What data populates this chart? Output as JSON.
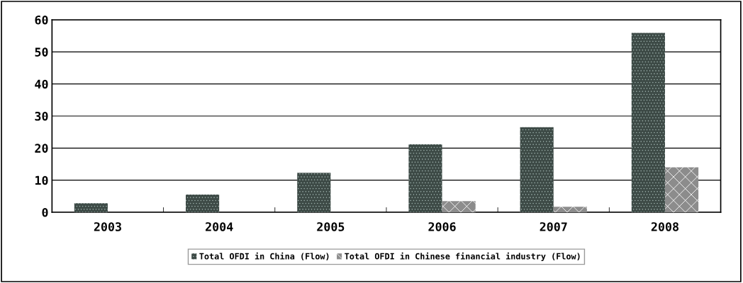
{
  "chart_data": {
    "type": "bar",
    "categories": [
      "2003",
      "2004",
      "2005",
      "2006",
      "2007",
      "2008"
    ],
    "series": [
      {
        "name": "Total OFDI in China (Flow)",
        "color": "#3d4a46",
        "values": [
          2.8,
          5.5,
          12.3,
          21.2,
          26.5,
          55.9
        ]
      },
      {
        "name": "Total OFDI in Chinese financial industry (Flow)",
        "color": "#8c8c8c",
        "values": [
          null,
          null,
          null,
          3.5,
          1.7,
          14.0
        ]
      }
    ],
    "ylim": [
      0,
      60
    ],
    "yticks": [
      0,
      10,
      20,
      30,
      40,
      50,
      60
    ],
    "grid": "y",
    "legend": "bottom"
  }
}
